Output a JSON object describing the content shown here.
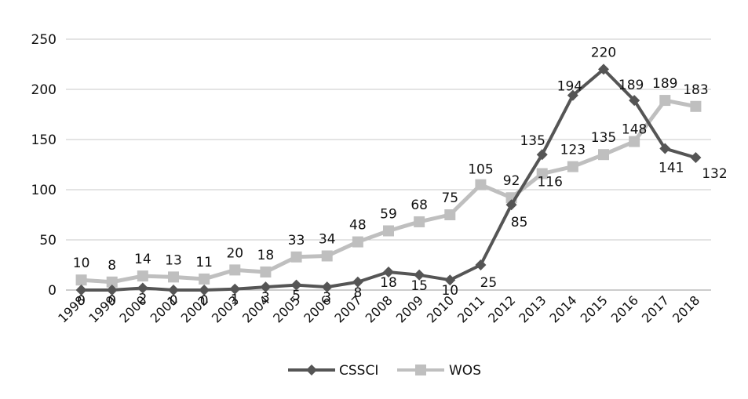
{
  "chart_data": {
    "type": "line",
    "categories": [
      "1998",
      "1999",
      "2000",
      "2001",
      "2002",
      "2003",
      "2004",
      "2005",
      "2006",
      "2007",
      "2008",
      "2009",
      "2010",
      "2011",
      "2012",
      "2013",
      "2014",
      "2015",
      "2016",
      "2017",
      "2018"
    ],
    "y_ticks": [
      "0",
      "50",
      "100",
      "150",
      "200",
      "250"
    ],
    "ylim": [
      0,
      250
    ],
    "grid": true,
    "legend_position": "bottom",
    "series": [
      {
        "name": "CSSCI",
        "color": "#555555",
        "marker": "diamond",
        "values": [
          0,
          0,
          2,
          0,
          0,
          1,
          3,
          5,
          3,
          8,
          18,
          15,
          10,
          25,
          85,
          135,
          194,
          220,
          189,
          141,
          132
        ],
        "labels": [
          "0",
          "0",
          "2",
          "0",
          "0",
          "1",
          "3",
          "5",
          "3",
          "8",
          "18",
          "15",
          "10",
          "25",
          "85",
          "135",
          "194",
          "220",
          "189",
          "141",
          "132"
        ]
      },
      {
        "name": "WOS",
        "color": "#bfbfbf",
        "marker": "square",
        "values": [
          10,
          8,
          14,
          13,
          11,
          20,
          18,
          33,
          34,
          48,
          59,
          68,
          75,
          105,
          92,
          116,
          123,
          135,
          148,
          189,
          183
        ],
        "labels": [
          "10",
          "8",
          "14",
          "13",
          "11",
          "20",
          "18",
          "33",
          "34",
          "48",
          "59",
          "68",
          "75",
          "105",
          "92",
          "116",
          "123",
          "135",
          "148",
          "189",
          "183"
        ]
      }
    ]
  }
}
